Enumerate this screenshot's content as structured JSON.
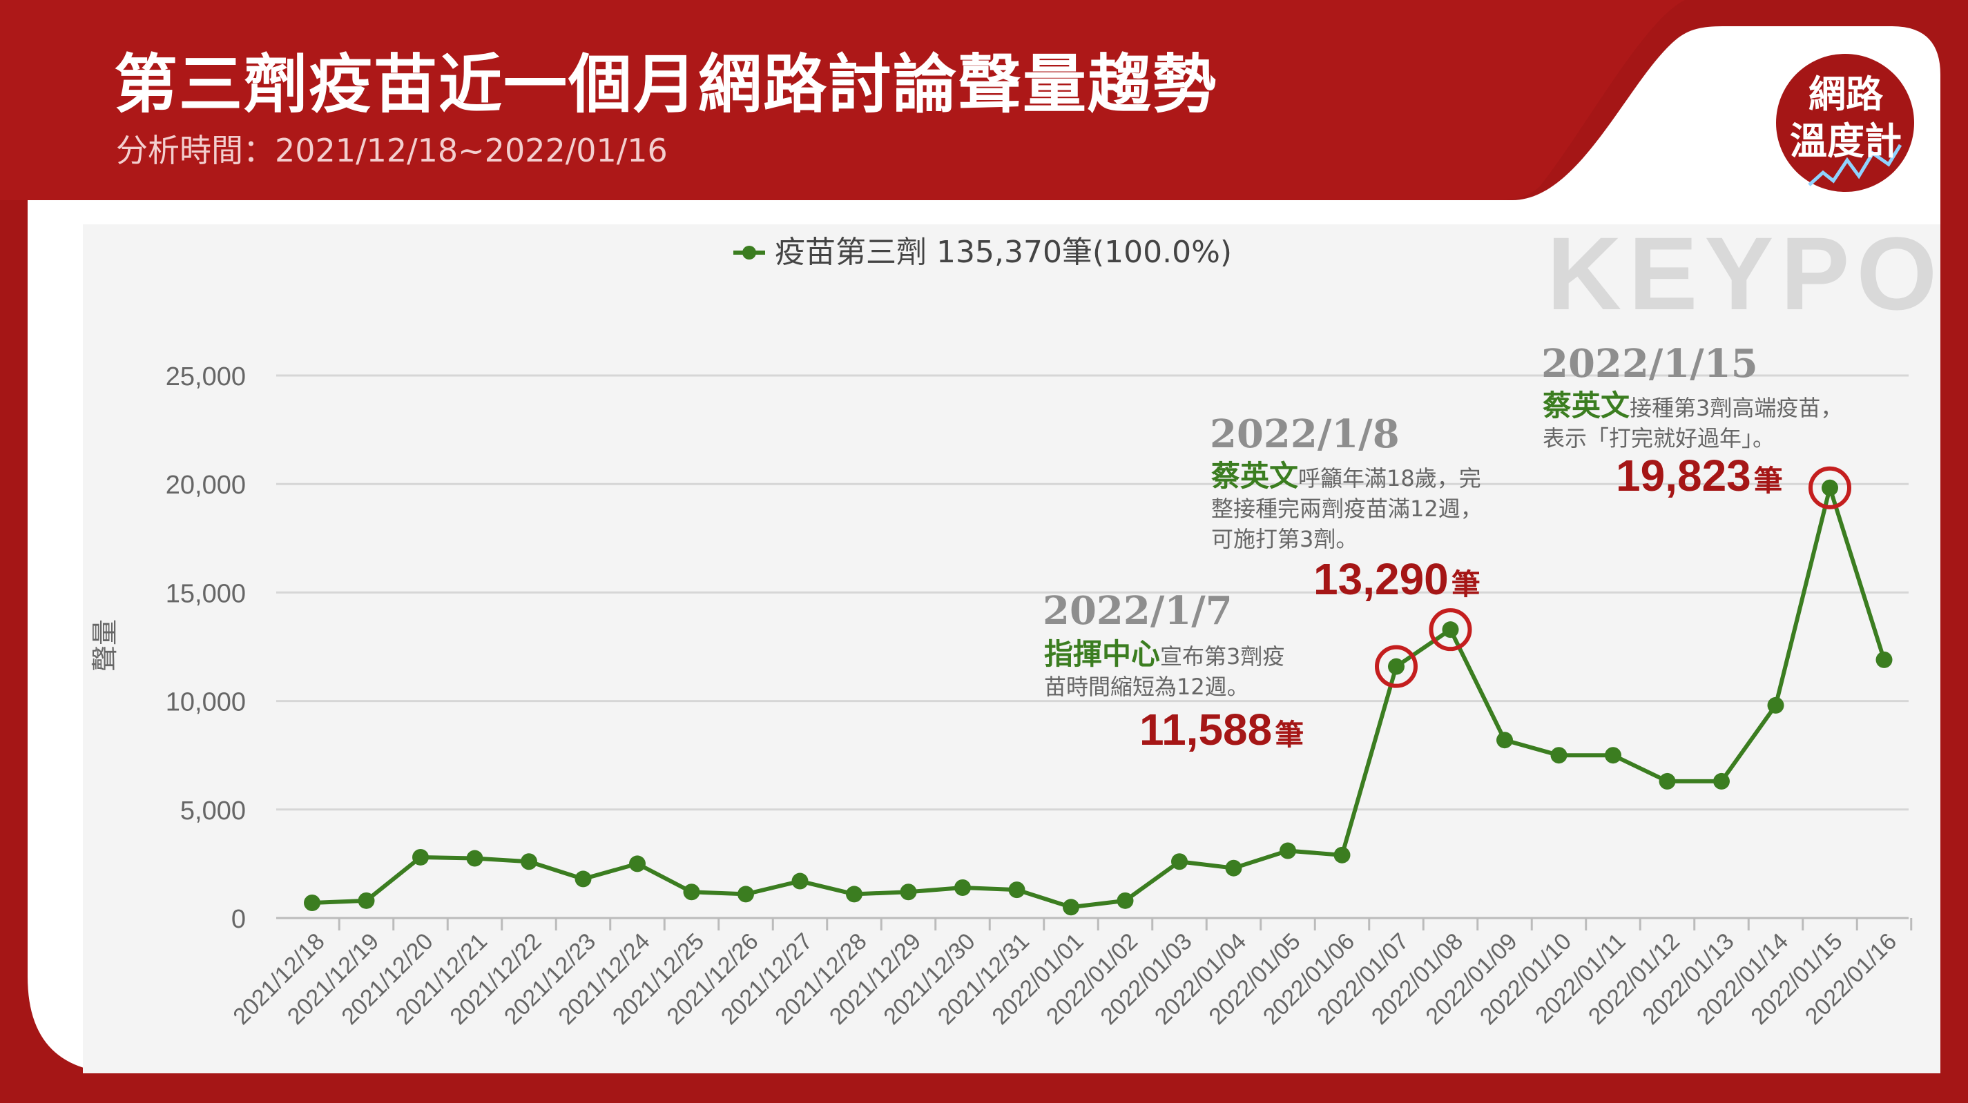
{
  "header": {
    "title": "第三劑疫苗近一個月網路討論聲量趨勢",
    "subtitle": "分析時間：2021/12/18~2022/01/16"
  },
  "badge": {
    "line1": "網路",
    "line2": "溫度計"
  },
  "watermark": {
    "text": "KEYPO"
  },
  "colors": {
    "brand_red": "#a51616",
    "series_green": "#3b7d20",
    "highlight_red": "#c41e1e",
    "panel_bg": "#f4f4f4",
    "grid": "#d6d6d6"
  },
  "chart_data": {
    "type": "line",
    "legend": {
      "label": "疫苗第三劑 135,370筆(100.0%)",
      "position": "top-center"
    },
    "ylabel": "聲量",
    "ylim": [
      0,
      25000
    ],
    "yticks": [
      0,
      5000,
      10000,
      15000,
      20000,
      25000
    ],
    "ytick_labels": [
      "0",
      "5,000",
      "10,000",
      "15,000",
      "20,000",
      "25,000"
    ],
    "grid": true,
    "categories": [
      "2021/12/18",
      "2021/12/19",
      "2021/12/20",
      "2021/12/21",
      "2021/12/22",
      "2021/12/23",
      "2021/12/24",
      "2021/12/25",
      "2021/12/26",
      "2021/12/27",
      "2021/12/28",
      "2021/12/29",
      "2021/12/30",
      "2021/12/31",
      "2022/01/01",
      "2022/01/02",
      "2022/01/03",
      "2022/01/04",
      "2022/01/05",
      "2022/01/06",
      "2022/01/07",
      "2022/01/08",
      "2022/01/09",
      "2022/01/10",
      "2022/01/11",
      "2022/01/12",
      "2022/01/13",
      "2022/01/14",
      "2022/01/15",
      "2022/01/16"
    ],
    "series": [
      {
        "name": "疫苗第三劑",
        "values": [
          700,
          800,
          2800,
          2750,
          2600,
          1800,
          2500,
          1200,
          1100,
          1700,
          1100,
          1200,
          1400,
          1300,
          500,
          800,
          2600,
          2300,
          3100,
          2900,
          11588,
          13290,
          8200,
          7500,
          7500,
          6300,
          6300,
          9800,
          19823,
          11900
        ]
      }
    ],
    "annotations": [
      {
        "index": 20,
        "date": "2022/1/7",
        "who": "指揮中心",
        "text_lines": [
          "宣布第3劑疫",
          "苗時間縮短為12週。"
        ],
        "count": "11,588",
        "unit": "筆"
      },
      {
        "index": 21,
        "date": "2022/1/8",
        "who": "蔡英文",
        "text_lines": [
          "呼籲年滿18歲，完",
          "整接種完兩劑疫苗滿12週，",
          "可施打第3劑。"
        ],
        "count": "13,290",
        "unit": "筆"
      },
      {
        "index": 28,
        "date": "2022/1/15",
        "who": "蔡英文",
        "text_lines": [
          "接種第3劑高端疫苗，",
          "表示「打完就好過年」。"
        ],
        "count": "19,823",
        "unit": "筆"
      }
    ]
  }
}
